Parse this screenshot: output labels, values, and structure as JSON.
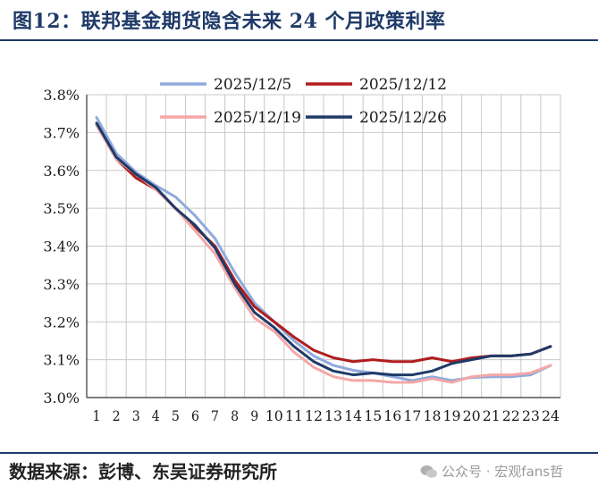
{
  "header": {
    "title": "图12：联邦基金期货隐含未来 24 个月政策利率"
  },
  "footer": {
    "source": "数据来源：彭博、东吴证券研究所",
    "watermark": "公众号 · 宏观fans哲"
  },
  "colors": {
    "title_blue": "#1f3a68",
    "grid": "#c8c8c8"
  },
  "chart_data": {
    "type": "line",
    "title": "",
    "xlabel": "",
    "ylabel": "",
    "x": [
      1,
      2,
      3,
      4,
      5,
      6,
      7,
      8,
      9,
      10,
      11,
      12,
      13,
      14,
      15,
      16,
      17,
      18,
      19,
      20,
      21,
      22,
      23,
      24
    ],
    "ylim": [
      3.0,
      3.8
    ],
    "yticks": [
      "3.0%",
      "3.1%",
      "3.2%",
      "3.3%",
      "3.4%",
      "3.5%",
      "3.6%",
      "3.7%",
      "3.8%"
    ],
    "grid": "both",
    "legend_position": "top",
    "series": [
      {
        "name": "2025/12/5",
        "color": "#8faadc",
        "values": [
          3.74,
          3.645,
          3.595,
          3.56,
          3.53,
          3.48,
          3.42,
          3.33,
          3.25,
          3.2,
          3.15,
          3.11,
          3.085,
          3.072,
          3.065,
          3.055,
          3.045,
          3.055,
          3.045,
          3.053,
          3.055,
          3.055,
          3.06,
          3.085
        ]
      },
      {
        "name": "2025/12/12",
        "color": "#b01c1c",
        "values": [
          3.72,
          3.63,
          3.58,
          3.55,
          3.5,
          3.45,
          3.4,
          3.31,
          3.24,
          3.2,
          3.16,
          3.125,
          3.105,
          3.095,
          3.1,
          3.095,
          3.095,
          3.105,
          3.095,
          3.105,
          3.11,
          3.11,
          3.115,
          3.135
        ]
      },
      {
        "name": "2025/12/19",
        "color": "#f4a7a7",
        "values": [
          3.72,
          3.63,
          3.59,
          3.55,
          3.5,
          3.44,
          3.38,
          3.29,
          3.21,
          3.175,
          3.12,
          3.08,
          3.055,
          3.045,
          3.045,
          3.04,
          3.04,
          3.05,
          3.04,
          3.055,
          3.06,
          3.06,
          3.065,
          3.085
        ]
      },
      {
        "name": "2025/12/26",
        "color": "#1f3a68",
        "values": [
          3.725,
          3.635,
          3.59,
          3.555,
          3.5,
          3.455,
          3.395,
          3.3,
          3.225,
          3.185,
          3.135,
          3.095,
          3.07,
          3.06,
          3.065,
          3.06,
          3.06,
          3.07,
          3.09,
          3.1,
          3.11,
          3.11,
          3.115,
          3.135
        ]
      }
    ]
  }
}
